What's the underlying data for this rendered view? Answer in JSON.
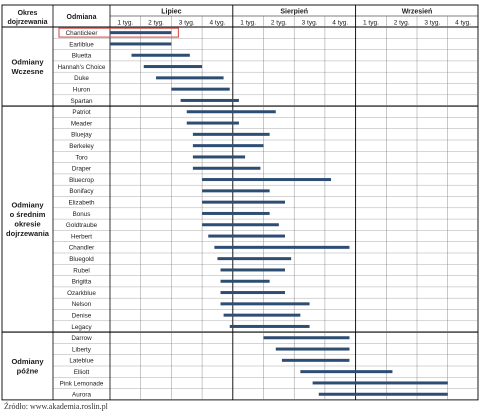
{
  "chart_data": {
    "type": "gantt",
    "header": {
      "period_col": "Okres dojrzewania",
      "variety_col": "Odmiana"
    },
    "months": [
      "Lipiec",
      "Sierpień",
      "Wrzesień"
    ],
    "weeks": [
      "1 tyg.",
      "2 tyg.",
      "3 tyg.",
      "4 tyg."
    ],
    "groups": [
      {
        "label": "Odmiany Wczesne",
        "lines": [
          "Odmiany",
          "Wczesne"
        ],
        "start": 0,
        "count": 7
      },
      {
        "label": "Odmiany o średnim okresie dojrzewania",
        "lines": [
          "Odmiany",
          "o średnim",
          "okresie",
          "dojrzewania"
        ],
        "start": 7,
        "count": 20
      },
      {
        "label": "Odmiany późne",
        "lines": [
          "Odmiany",
          "późne"
        ],
        "start": 27,
        "count": 6
      }
    ],
    "varieties": [
      {
        "name": "Chanticleer",
        "start": 0.0,
        "end": 2.0,
        "highlighted": true
      },
      {
        "name": "Earliblue",
        "start": 0.0,
        "end": 2.0
      },
      {
        "name": "Bluetta",
        "start": 0.7,
        "end": 2.6
      },
      {
        "name": "Hannah's Choice",
        "start": 1.1,
        "end": 3.0
      },
      {
        "name": "Duke",
        "start": 1.5,
        "end": 3.7
      },
      {
        "name": "Huron",
        "start": 2.0,
        "end": 3.9
      },
      {
        "name": "Spartan",
        "start": 2.3,
        "end": 4.2
      },
      {
        "name": "Patriot",
        "start": 2.5,
        "end": 5.4
      },
      {
        "name": "Meader",
        "start": 2.5,
        "end": 4.2
      },
      {
        "name": "Bluejay",
        "start": 2.7,
        "end": 5.2
      },
      {
        "name": "Berkeley",
        "start": 2.7,
        "end": 5.0
      },
      {
        "name": "Toro",
        "start": 2.7,
        "end": 4.4
      },
      {
        "name": "Draper",
        "start": 2.7,
        "end": 4.9
      },
      {
        "name": "Bluecrop",
        "start": 3.0,
        "end": 7.2
      },
      {
        "name": "Bonifacy",
        "start": 3.0,
        "end": 5.2
      },
      {
        "name": "Elizabeth",
        "start": 3.0,
        "end": 5.7
      },
      {
        "name": "Bonus",
        "start": 3.0,
        "end": 5.2
      },
      {
        "name": "Goldtraube",
        "start": 3.0,
        "end": 5.5
      },
      {
        "name": "Herbert",
        "start": 3.2,
        "end": 5.7
      },
      {
        "name": "Chandler",
        "start": 3.4,
        "end": 7.8
      },
      {
        "name": "Bluegold",
        "start": 3.5,
        "end": 5.9
      },
      {
        "name": "Rubel",
        "start": 3.6,
        "end": 5.7
      },
      {
        "name": "Brigitta",
        "start": 3.6,
        "end": 5.2
      },
      {
        "name": "Ozarkblue",
        "start": 3.6,
        "end": 5.7
      },
      {
        "name": "Nelson",
        "start": 3.6,
        "end": 6.5
      },
      {
        "name": "Denise",
        "start": 3.7,
        "end": 6.2
      },
      {
        "name": "Legacy",
        "start": 3.9,
        "end": 6.5
      },
      {
        "name": "Darrow",
        "start": 5.0,
        "end": 7.8
      },
      {
        "name": "Liberty",
        "start": 5.4,
        "end": 7.8
      },
      {
        "name": "Lateblue",
        "start": 5.6,
        "end": 7.8
      },
      {
        "name": "Elliott",
        "start": 6.2,
        "end": 9.2
      },
      {
        "name": "Pink Lemonade",
        "start": 6.6,
        "end": 11.0
      },
      {
        "name": "Aurora",
        "start": 6.8,
        "end": 11.0
      }
    ],
    "x_unit": "weeks from 1 tyg. Lipiec (0 = start of July week 1, 12 = end of September week 4)",
    "bar_color": "#2e4d73",
    "highlight_color": "#d9534f",
    "grid": true
  },
  "source": "Źródło: www.akademia.roslin.pl"
}
